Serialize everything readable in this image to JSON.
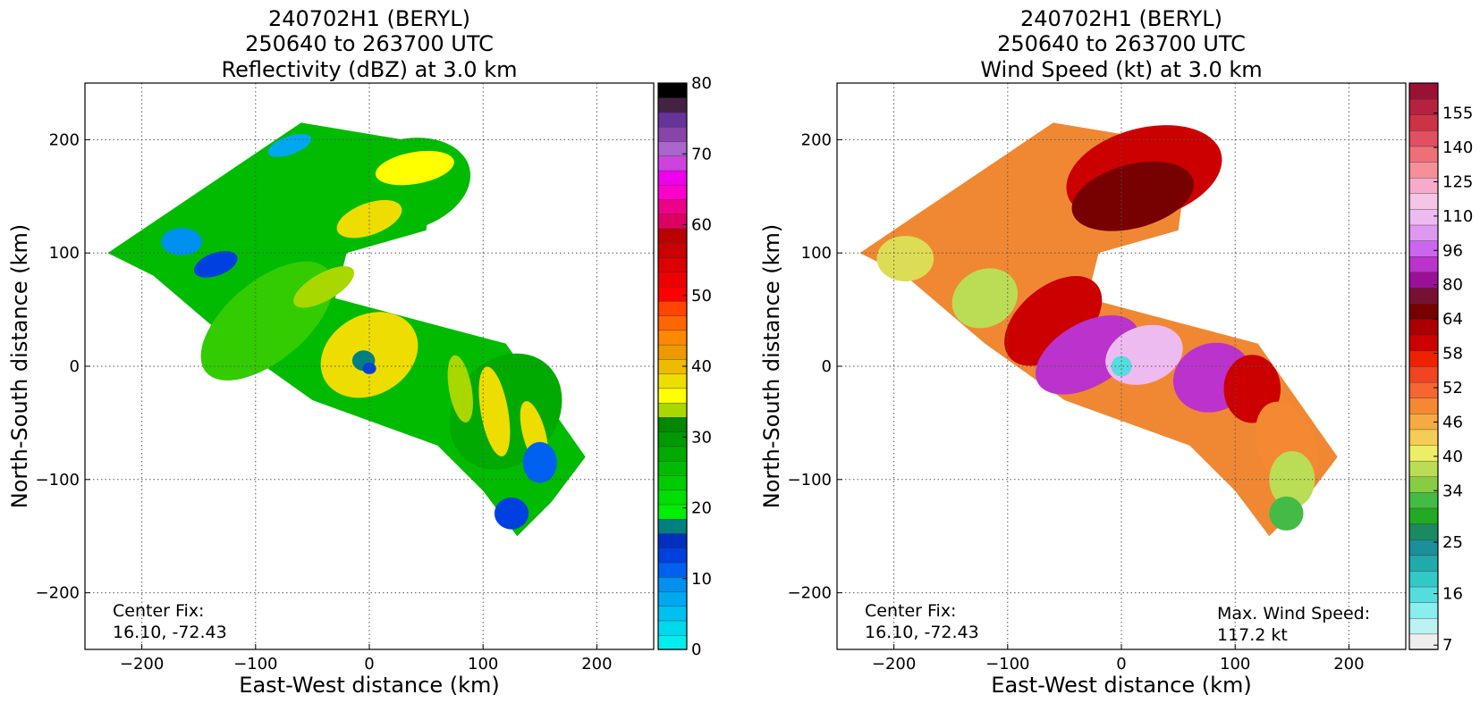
{
  "chart_data": [
    {
      "type": "heatmap",
      "variable": "reflectivity",
      "title_lines": [
        "240702H1 (BERYL)",
        "250640 to 263700 UTC",
        "Reflectivity (dBZ) at 3.0 km"
      ],
      "xlabel": "East-West distance (km)",
      "ylabel": "North-South distance (km)",
      "xlim": [
        -250,
        250
      ],
      "ylim": [
        -250,
        250
      ],
      "x_ticks": [
        -200,
        -100,
        0,
        100,
        200
      ],
      "y_ticks": [
        -200,
        -100,
        0,
        100,
        200
      ],
      "x_tick_labels": [
        "−200",
        "−100",
        "0",
        "100",
        "200"
      ],
      "y_tick_labels": [
        "−200",
        "−100",
        "0",
        "100",
        "200"
      ],
      "grid": "dotted",
      "annotations": [
        {
          "id": "center_fix",
          "lines": [
            "Center Fix:",
            "16.10, -72.43"
          ],
          "placement": "bottom-left"
        }
      ],
      "colorbar": {
        "min": 0,
        "max": 80,
        "tick_values": [
          0,
          10,
          20,
          30,
          40,
          50,
          60,
          70,
          80
        ],
        "tick_labels": [
          "0",
          "10",
          "20",
          "30",
          "40",
          "50",
          "60",
          "70",
          "80"
        ],
        "colors": [
          "#00eeee",
          "#00d8ee",
          "#00c0f0",
          "#00a8f0",
          "#0090f0",
          "#0060f0",
          "#0040e0",
          "#0030c0",
          "#008080",
          "#00ee00",
          "#00dd00",
          "#00cc00",
          "#00bb00",
          "#00aa00",
          "#009900",
          "#008800",
          "#a8d800",
          "#ffff00",
          "#eedd00",
          "#eebb00",
          "#ee9900",
          "#ff8800",
          "#ff6600",
          "#ff4400",
          "#ff0000",
          "#ee0000",
          "#dd0000",
          "#cc0000",
          "#bb0000",
          "#dd0060",
          "#ee0088",
          "#ff00cc",
          "#ee00ee",
          "#cc44dd",
          "#aa66cc",
          "#8844aa",
          "#663399",
          "#442244",
          "#000000"
        ]
      },
      "field": {
        "background": "#00bb00",
        "features": [
          {
            "shape": "blob",
            "x": -90,
            "y": 40,
            "rx": 70,
            "ry": 35,
            "rot": -40,
            "color": "#33cc00"
          },
          {
            "shape": "blob",
            "x": 30,
            "y": 160,
            "rx": 60,
            "ry": 40,
            "rot": -15,
            "color": "#00bb00"
          },
          {
            "shape": "blob",
            "x": 120,
            "y": -40,
            "rx": 55,
            "ry": 45,
            "rot": -50,
            "color": "#00aa00"
          },
          {
            "shape": "blob",
            "x": 0,
            "y": 10,
            "rx": 45,
            "ry": 35,
            "rot": -30,
            "color": "#eedd00"
          },
          {
            "shape": "blob",
            "x": 40,
            "y": 175,
            "rx": 35,
            "ry": 14,
            "rot": -10,
            "color": "#ffff00"
          },
          {
            "shape": "blob",
            "x": 0,
            "y": 130,
            "rx": 30,
            "ry": 14,
            "rot": -20,
            "color": "#eedd00"
          },
          {
            "shape": "blob",
            "x": -40,
            "y": 70,
            "rx": 30,
            "ry": 12,
            "rot": -30,
            "color": "#a8d800"
          },
          {
            "shape": "blob",
            "x": 110,
            "y": -40,
            "rx": 12,
            "ry": 40,
            "rot": -10,
            "color": "#eedd00"
          },
          {
            "shape": "blob",
            "x": 80,
            "y": -20,
            "rx": 10,
            "ry": 30,
            "rot": -10,
            "color": "#a8d800"
          },
          {
            "shape": "blob",
            "x": 145,
            "y": -60,
            "rx": 10,
            "ry": 30,
            "rot": -15,
            "color": "#eedd00"
          },
          {
            "shape": "blob",
            "x": -165,
            "y": 110,
            "rx": 18,
            "ry": 12,
            "rot": 0,
            "color": "#0090f0"
          },
          {
            "shape": "blob",
            "x": -135,
            "y": 90,
            "rx": 20,
            "ry": 10,
            "rot": -20,
            "color": "#0040e0"
          },
          {
            "shape": "blob",
            "x": -70,
            "y": 195,
            "rx": 20,
            "ry": 8,
            "rot": -20,
            "color": "#00a8f0"
          },
          {
            "shape": "blob",
            "x": 150,
            "y": -85,
            "rx": 15,
            "ry": 18,
            "rot": 0,
            "color": "#0060f0"
          },
          {
            "shape": "blob",
            "x": 125,
            "y": -130,
            "rx": 15,
            "ry": 14,
            "rot": 0,
            "color": "#0040e0"
          },
          {
            "shape": "blob",
            "x": -5,
            "y": 5,
            "rx": 10,
            "ry": 9,
            "rot": 0,
            "color": "#008080"
          },
          {
            "shape": "blob",
            "x": 0,
            "y": -2,
            "rx": 6,
            "ry": 5,
            "rot": 0,
            "color": "#0040e0"
          }
        ]
      }
    },
    {
      "type": "heatmap",
      "variable": "wind_speed",
      "title_lines": [
        "240702H1 (BERYL)",
        "250640 to 263700 UTC",
        "Wind Speed (kt) at 3.0 km"
      ],
      "xlabel": "East-West distance (km)",
      "ylabel": "North-South distance (km)",
      "xlim": [
        -250,
        250
      ],
      "ylim": [
        -250,
        250
      ],
      "x_ticks": [
        -200,
        -100,
        0,
        100,
        200
      ],
      "y_ticks": [
        -200,
        -100,
        0,
        100,
        200
      ],
      "x_tick_labels": [
        "−200",
        "−100",
        "0",
        "100",
        "200"
      ],
      "y_tick_labels": [
        "−200",
        "−100",
        "0",
        "100",
        "200"
      ],
      "grid": "dotted",
      "annotations": [
        {
          "id": "center_fix",
          "lines": [
            "Center Fix:",
            "16.10, -72.43"
          ],
          "placement": "bottom-left"
        },
        {
          "id": "max_wind",
          "lines": [
            "Max. Wind Speed:",
            "117.2 kt"
          ],
          "placement": "bottom-right"
        }
      ],
      "colorbar": {
        "tick_labels": [
          "7",
          "16",
          "25",
          "34",
          "40",
          "46",
          "52",
          "58",
          "64",
          "80",
          "96",
          "110",
          "125",
          "140",
          "155"
        ],
        "tick_levels": [
          0,
          3,
          6,
          9,
          11,
          13,
          15,
          17,
          19,
          21,
          23,
          25,
          27,
          29,
          31
        ],
        "colors": [
          "#eeeeee",
          "#bbf2f2",
          "#88eeee",
          "#55dddd",
          "#33c8c8",
          "#22aaaa",
          "#1b8f9a",
          "#1a8a60",
          "#22aa22",
          "#44bb44",
          "#88cc44",
          "#bbdd55",
          "#eeee66",
          "#f5cc55",
          "#f5aa44",
          "#f58833",
          "#f56633",
          "#f04422",
          "#ee2200",
          "#cc0000",
          "#aa0000",
          "#770000",
          "#771133",
          "#991199",
          "#bb33cc",
          "#cc66ee",
          "#dd99f0",
          "#eebbf0",
          "#f5c5e5",
          "#f8aacc",
          "#f59099",
          "#ee7077",
          "#e05060",
          "#cc3344",
          "#b52240",
          "#991133"
        ]
      },
      "field": {
        "background": "#f08833",
        "features": [
          {
            "shape": "blob",
            "x": -190,
            "y": 95,
            "rx": 25,
            "ry": 20,
            "rot": 0,
            "color": "#dddd55"
          },
          {
            "shape": "blob",
            "x": -120,
            "y": 60,
            "rx": 30,
            "ry": 25,
            "rot": -30,
            "color": "#bbdd55"
          },
          {
            "shape": "blob",
            "x": -60,
            "y": 40,
            "rx": 50,
            "ry": 30,
            "rot": -40,
            "color": "#cc0000"
          },
          {
            "shape": "blob",
            "x": 20,
            "y": 170,
            "rx": 70,
            "ry": 40,
            "rot": -15,
            "color": "#cc0000"
          },
          {
            "shape": "blob",
            "x": 10,
            "y": 150,
            "rx": 55,
            "ry": 28,
            "rot": -15,
            "color": "#770000"
          },
          {
            "shape": "blob",
            "x": -30,
            "y": 10,
            "rx": 50,
            "ry": 28,
            "rot": -30,
            "color": "#bb33cc"
          },
          {
            "shape": "blob",
            "x": 20,
            "y": 10,
            "rx": 35,
            "ry": 25,
            "rot": -20,
            "color": "#eebbf0"
          },
          {
            "shape": "blob",
            "x": 80,
            "y": -10,
            "rx": 35,
            "ry": 30,
            "rot": -20,
            "color": "#bb33cc"
          },
          {
            "shape": "blob",
            "x": 115,
            "y": -20,
            "rx": 25,
            "ry": 30,
            "rot": 0,
            "color": "#cc0000"
          },
          {
            "shape": "blob",
            "x": 145,
            "y": -70,
            "rx": 25,
            "ry": 40,
            "rot": -20,
            "color": "#f58833"
          },
          {
            "shape": "blob",
            "x": 150,
            "y": -100,
            "rx": 20,
            "ry": 25,
            "rot": 0,
            "color": "#bbdd55"
          },
          {
            "shape": "blob",
            "x": 145,
            "y": -130,
            "rx": 15,
            "ry": 15,
            "rot": 0,
            "color": "#44bb44"
          },
          {
            "shape": "blob",
            "x": 0,
            "y": 0,
            "rx": 9,
            "ry": 9,
            "rot": 0,
            "color": "#55dddd"
          }
        ]
      }
    }
  ]
}
